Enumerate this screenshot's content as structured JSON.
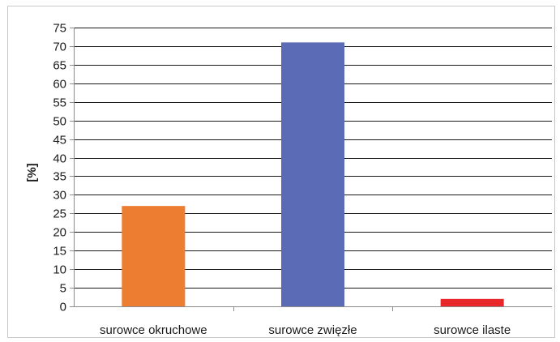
{
  "chart_data": {
    "type": "bar",
    "title": "",
    "xlabel": "",
    "ylabel": "[%]",
    "categories": [
      "surowce okruchowe",
      "surowce zwięzłe",
      "surowce ilaste"
    ],
    "values": [
      27,
      71,
      2
    ],
    "colors": [
      "#ed7d31",
      "#5b6bb6",
      "#e8282b"
    ],
    "ylim": [
      0,
      75
    ],
    "yticks": [
      "0",
      "5",
      "10",
      "15",
      "20",
      "25",
      "30",
      "35",
      "40",
      "45",
      "50",
      "55",
      "60",
      "65",
      "70",
      "75"
    ],
    "grid": true,
    "legend": "none"
  }
}
